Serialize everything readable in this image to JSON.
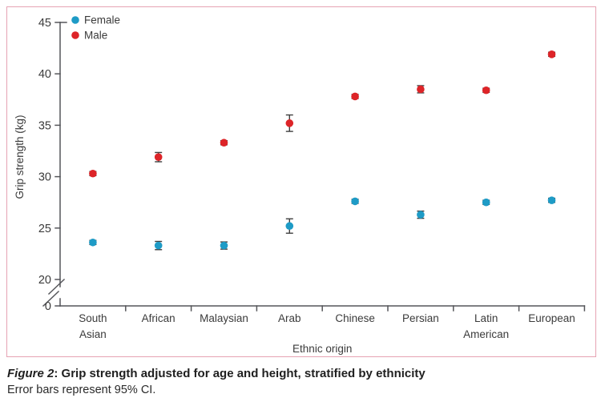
{
  "figure": {
    "caption_label": "Figure 2",
    "caption_title": ": Grip strength adjusted for age and height, stratified by ethnicity",
    "caption_note": "Error bars represent 95% CI."
  },
  "colors": {
    "female": "#1E9BC6",
    "male": "#DD2428",
    "axis": "#55565A",
    "text": "#3B3B3B",
    "error_bar": "#3F3F3F",
    "frame_border": "#E6A3B3"
  },
  "chart_data": {
    "type": "scatter",
    "title": "",
    "xlabel": "Ethnic origin",
    "ylabel": "Grip strength (kg)",
    "categories": [
      "South Asian",
      "African",
      "Malaysian",
      "Arab",
      "Chinese",
      "Persian",
      "Latin American",
      "European"
    ],
    "y_ticks": [
      0,
      20,
      25,
      30,
      35,
      40,
      45
    ],
    "ylim": [
      20,
      45
    ],
    "y_axis_break_between": [
      0,
      20
    ],
    "grid": false,
    "legend_position": "top-left",
    "error_bars": "95% CI",
    "series": [
      {
        "name": "Female",
        "color": "#1E9BC6",
        "values": [
          23.6,
          23.3,
          23.3,
          25.2,
          27.6,
          26.3,
          27.5,
          27.7
        ],
        "ci_halfwidth": [
          0.2,
          0.4,
          0.35,
          0.7,
          0.2,
          0.35,
          0.2,
          0.2
        ]
      },
      {
        "name": "Male",
        "color": "#DD2428",
        "values": [
          30.3,
          31.9,
          33.3,
          35.2,
          37.8,
          38.5,
          38.4,
          41.9
        ],
        "ci_halfwidth": [
          0.2,
          0.45,
          0.2,
          0.8,
          0.2,
          0.35,
          0.2,
          0.2
        ]
      }
    ]
  }
}
